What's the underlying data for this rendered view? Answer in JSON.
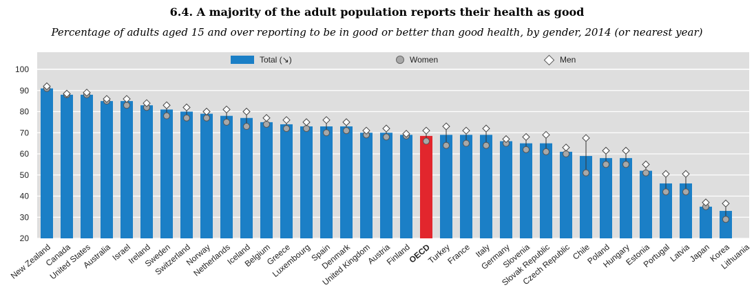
{
  "title": "6.4. A majority of the adult population reports their health as good",
  "subtitle": "Percentage of adults aged 15 and over reporting to be in good or better than good health, by gender, 2014 (or nearest year)",
  "legend": {
    "total": "Total (↘)",
    "women": "Women",
    "men": "Men"
  },
  "colors": {
    "bar": "#1b7fc6",
    "highlight": "#e2262d",
    "plot_bg": "#dedede",
    "women": "#a8a8a8"
  },
  "chart_data": {
    "type": "bar",
    "ylim": [
      20,
      100
    ],
    "yticks": [
      20,
      30,
      40,
      50,
      60,
      70,
      80,
      90,
      100
    ],
    "categories": [
      "New Zealand",
      "Canada",
      "United States",
      "Australia",
      "Israel",
      "Ireland",
      "Sweden",
      "Switzerland",
      "Norway",
      "Netherlands",
      "Iceland",
      "Belgium",
      "Greece",
      "Luxembourg",
      "Spain",
      "Denmark",
      "United Kingdom",
      "Austria",
      "Finland",
      "OECD",
      "Turkey",
      "France",
      "Italy",
      "Germany",
      "Slovenia",
      "Slovak Republic",
      "Czech Republic",
      "Chile",
      "Poland",
      "Hungary",
      "Estonia",
      "Portugal",
      "Latvia",
      "Japan",
      "Korea",
      "Lithuania"
    ],
    "highlight": "OECD",
    "series": [
      {
        "name": "Total",
        "values": [
          91,
          88,
          88,
          85,
          85,
          83,
          81,
          80,
          79,
          78,
          77,
          75,
          74,
          73,
          73,
          73,
          70,
          70,
          69,
          68.5,
          69,
          69,
          69,
          66,
          65,
          65,
          61,
          59,
          58,
          58,
          52,
          46,
          46,
          35,
          33,
          null
        ]
      },
      {
        "name": "Women",
        "values": [
          91,
          88,
          88,
          85,
          83,
          82,
          78,
          77,
          77,
          75,
          73,
          74,
          72,
          72,
          70,
          71,
          69,
          68,
          68.5,
          66,
          64,
          65,
          64,
          65,
          62,
          61,
          60,
          51,
          55,
          55,
          51,
          42,
          42,
          35,
          29,
          null
        ]
      },
      {
        "name": "Men",
        "values": [
          92,
          88.5,
          89,
          86,
          86,
          84,
          83,
          82,
          80,
          81,
          80,
          77,
          76,
          75,
          76,
          75,
          71,
          72,
          69.5,
          71,
          73,
          71,
          72,
          67,
          68,
          69,
          63,
          67.5,
          61.5,
          61.5,
          55,
          50.5,
          50.5,
          37,
          36.5,
          null
        ]
      }
    ]
  }
}
